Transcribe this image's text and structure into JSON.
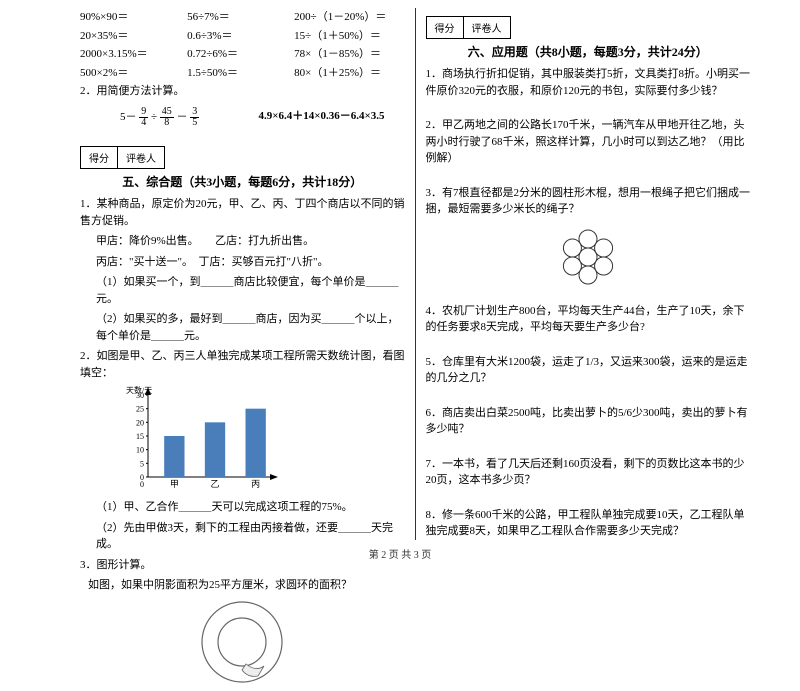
{
  "left": {
    "calc": [
      "90%×90＝",
      "56÷7%＝",
      "200÷（1－20%）＝",
      "20×35%＝",
      "0.6÷3%＝",
      "15÷（1＋50%）＝",
      "2000×3.15%＝",
      "0.72÷6%＝",
      "78×（1－85%）＝",
      "500×2%＝",
      "1.5÷50%＝",
      "80×（1＋25%）＝"
    ],
    "q2_label": "2．用简便方法计算。",
    "frac_expr_left_prefix": "5－",
    "frac1": {
      "n": "9",
      "d": "4"
    },
    "frac_div": "÷",
    "frac2": {
      "n": "45",
      "d": "8"
    },
    "frac_minus": "－",
    "frac3": {
      "n": "3",
      "d": "5"
    },
    "expr_right": "4.9×6.4＋14×0.36－6.4×3.5",
    "score_l": "得分",
    "score_r": "评卷人",
    "sec5_title": "五、综合题（共3小题，每题6分，共计18分）",
    "p1a": "1．某种商品，原定价为20元，甲、乙、丙、丁四个商店以不同的销售方促销。",
    "p1b": "甲店：降价9%出售。　　乙店：打九折出售。",
    "p1c": "丙店：\"买十送一\"。　丁店：买够百元打\"八折\"。",
    "p1d": "（1）如果买一个，到＿＿＿商店比较便宜，每个单价是＿＿＿元。",
    "p1e": "（2）如果买的多，最好到＿＿＿商店，因为买＿＿＿个以上，每个单价是＿＿＿元。",
    "p2": "2．如图是甲、乙、丙三人单独完成某项工程所需天数统计图，看图填空：",
    "chart": {
      "ylabel": "天数/天",
      "ymax": 30,
      "ystep": 5,
      "categories": [
        "甲",
        "乙",
        "丙"
      ],
      "values": [
        15,
        20,
        25
      ],
      "bar_color": "#4a7ebb",
      "axis_color": "#000000",
      "width": 160,
      "height": 110
    },
    "p2a": "（1）甲、乙合作＿＿＿天可以完成这项工程的75%。",
    "p2b": "（2）先由甲做3天，剩下的工程由丙接着做，还要＿＿＿天完成。",
    "p3a": "3．图形计算。",
    "p3b": "如图，如果中阴影面积为25平方厘米，求圆环的面积？",
    "ring": {
      "outer_r": 40,
      "inner_r": 24,
      "stroke": "#666666"
    }
  },
  "right": {
    "score_l": "得分",
    "score_r": "评卷人",
    "sec6_title": "六、应用题（共8小题，每题3分，共计24分）",
    "q1": "1．商场执行折扣促销，其中服装类打5折，文具类打8折。小明买一件原价320元的衣服，和原价120元的书包，实际要付多少钱？",
    "q2": "2．甲乙两地之间的公路长170千米，一辆汽车从甲地开往乙地，头两小时行驶了68千米，照这样计算，几小时可以到达乙地？（用比例解）",
    "q3": "3．有7根直径都是2分米的圆柱形木棍，想用一根绳子把它们捆成一捆，最短需要多少米长的绳子？",
    "circles": {
      "r": 9,
      "stroke": "#333333"
    },
    "q4": "4．农机厂计划生产800台，平均每天生产44台，生产了10天，余下的任务要求8天完成，平均每天要生产多少台?",
    "q5": "5．仓库里有大米1200袋，运走了1/3，又运来300袋，运来的是运走的几分之几？",
    "q6": "6．商店卖出白菜2500吨，比卖出萝卜的5/6少300吨，卖出的萝卜有多少吨？",
    "q7": "7．一本书，看了几天后还剩160页没看，剩下的页数比这本书的少20页，这本书多少页？",
    "q8": "8．修一条600千米的公路，甲工程队单独完成要10天，乙工程队单独完成要8天，如果甲乙工程队合作需要多少天完成？"
  },
  "footer": "第 2 页 共 3 页"
}
